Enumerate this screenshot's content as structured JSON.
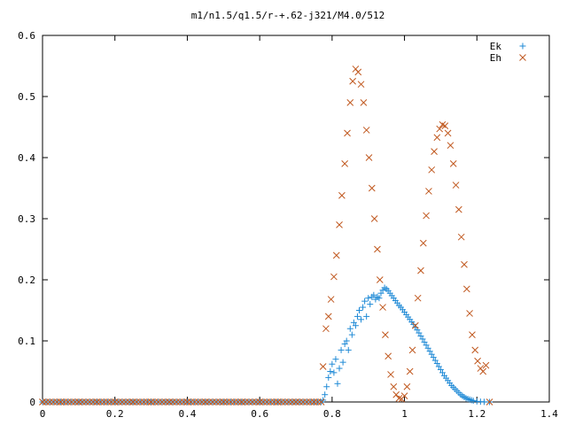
{
  "chart_data": {
    "type": "scatter",
    "title": "m1/n1.5/q1.5/r-+.62-j321/M4.0/512",
    "xlabel": "",
    "ylabel": "",
    "xlim": [
      0,
      1.4
    ],
    "ylim": [
      0,
      0.6
    ],
    "x_ticks": [
      "0",
      "0.2",
      "0.4",
      "0.6",
      "0.8",
      "1",
      "1.2",
      "1.4"
    ],
    "y_ticks": [
      "0",
      "0.1",
      "0.2",
      "0.3",
      "0.4",
      "0.5",
      "0.6"
    ],
    "grid": false,
    "legend_position": "top-right",
    "series": [
      {
        "name": "Ek",
        "marker": "plus",
        "color": "#1f8ad6",
        "points": [
          [
            0.0,
            0.0
          ],
          [
            0.05,
            0.0
          ],
          [
            0.1,
            0.0
          ],
          [
            0.15,
            0.0
          ],
          [
            0.2,
            0.0
          ],
          [
            0.25,
            0.0
          ],
          [
            0.3,
            0.0
          ],
          [
            0.35,
            0.0
          ],
          [
            0.4,
            0.0
          ],
          [
            0.45,
            0.0
          ],
          [
            0.5,
            0.0
          ],
          [
            0.55,
            0.0
          ],
          [
            0.6,
            0.0
          ],
          [
            0.65,
            0.0
          ],
          [
            0.7,
            0.0
          ],
          [
            0.75,
            0.0
          ],
          [
            0.77,
            0.0
          ],
          [
            0.775,
            0.003
          ],
          [
            0.78,
            0.012
          ],
          [
            0.785,
            0.025
          ],
          [
            0.79,
            0.04
          ],
          [
            0.795,
            0.05
          ],
          [
            0.8,
            0.062
          ],
          [
            0.805,
            0.048
          ],
          [
            0.81,
            0.07
          ],
          [
            0.815,
            0.03
          ],
          [
            0.82,
            0.055
          ],
          [
            0.825,
            0.085
          ],
          [
            0.83,
            0.065
          ],
          [
            0.835,
            0.095
          ],
          [
            0.84,
            0.1
          ],
          [
            0.845,
            0.085
          ],
          [
            0.85,
            0.12
          ],
          [
            0.855,
            0.11
          ],
          [
            0.86,
            0.13
          ],
          [
            0.865,
            0.125
          ],
          [
            0.87,
            0.14
          ],
          [
            0.875,
            0.15
          ],
          [
            0.88,
            0.135
          ],
          [
            0.885,
            0.155
          ],
          [
            0.89,
            0.165
          ],
          [
            0.895,
            0.14
          ],
          [
            0.9,
            0.17
          ],
          [
            0.905,
            0.16
          ],
          [
            0.91,
            0.172
          ],
          [
            0.915,
            0.175
          ],
          [
            0.92,
            0.168
          ],
          [
            0.925,
            0.172
          ],
          [
            0.93,
            0.17
          ],
          [
            0.935,
            0.178
          ],
          [
            0.94,
            0.183
          ],
          [
            0.945,
            0.187
          ],
          [
            0.95,
            0.185
          ],
          [
            0.955,
            0.182
          ],
          [
            0.96,
            0.178
          ],
          [
            0.965,
            0.174
          ],
          [
            0.97,
            0.17
          ],
          [
            0.975,
            0.166
          ],
          [
            0.98,
            0.162
          ],
          [
            0.985,
            0.158
          ],
          [
            0.99,
            0.155
          ],
          [
            0.995,
            0.151
          ],
          [
            1.0,
            0.147
          ],
          [
            1.005,
            0.143
          ],
          [
            1.01,
            0.139
          ],
          [
            1.015,
            0.135
          ],
          [
            1.02,
            0.131
          ],
          [
            1.025,
            0.127
          ],
          [
            1.03,
            0.122
          ],
          [
            1.035,
            0.118
          ],
          [
            1.04,
            0.113
          ],
          [
            1.045,
            0.108
          ],
          [
            1.05,
            0.103
          ],
          [
            1.055,
            0.098
          ],
          [
            1.06,
            0.093
          ],
          [
            1.065,
            0.088
          ],
          [
            1.07,
            0.083
          ],
          [
            1.075,
            0.078
          ],
          [
            1.08,
            0.073
          ],
          [
            1.085,
            0.068
          ],
          [
            1.09,
            0.063
          ],
          [
            1.095,
            0.058
          ],
          [
            1.1,
            0.053
          ],
          [
            1.105,
            0.048
          ],
          [
            1.11,
            0.043
          ],
          [
            1.115,
            0.039
          ],
          [
            1.12,
            0.035
          ],
          [
            1.125,
            0.031
          ],
          [
            1.13,
            0.027
          ],
          [
            1.135,
            0.024
          ],
          [
            1.14,
            0.021
          ],
          [
            1.145,
            0.018
          ],
          [
            1.15,
            0.015
          ],
          [
            1.155,
            0.012
          ],
          [
            1.16,
            0.01
          ],
          [
            1.165,
            0.008
          ],
          [
            1.17,
            0.006
          ],
          [
            1.175,
            0.005
          ],
          [
            1.18,
            0.004
          ],
          [
            1.185,
            0.003
          ],
          [
            1.19,
            0.002
          ],
          [
            1.2,
            0.001
          ],
          [
            1.21,
            0.0005
          ],
          [
            1.22,
            0.0002
          ],
          [
            1.235,
            0.0
          ]
        ]
      },
      {
        "name": "Eh",
        "marker": "cross",
        "color": "#c0581f",
        "points": [
          [
            0.0,
            0.0
          ],
          [
            0.05,
            0.0
          ],
          [
            0.1,
            0.0
          ],
          [
            0.15,
            0.0
          ],
          [
            0.2,
            0.0
          ],
          [
            0.25,
            0.0
          ],
          [
            0.3,
            0.0
          ],
          [
            0.35,
            0.0
          ],
          [
            0.4,
            0.0
          ],
          [
            0.45,
            0.0
          ],
          [
            0.5,
            0.0
          ],
          [
            0.55,
            0.0
          ],
          [
            0.6,
            0.0
          ],
          [
            0.65,
            0.0
          ],
          [
            0.7,
            0.0
          ],
          [
            0.75,
            0.0
          ],
          [
            0.77,
            0.0
          ],
          [
            0.775,
            0.058
          ],
          [
            0.783,
            0.12
          ],
          [
            0.79,
            0.14
          ],
          [
            0.797,
            0.168
          ],
          [
            0.805,
            0.205
          ],
          [
            0.812,
            0.24
          ],
          [
            0.82,
            0.29
          ],
          [
            0.827,
            0.338
          ],
          [
            0.835,
            0.39
          ],
          [
            0.842,
            0.44
          ],
          [
            0.85,
            0.49
          ],
          [
            0.857,
            0.525
          ],
          [
            0.865,
            0.545
          ],
          [
            0.872,
            0.54
          ],
          [
            0.88,
            0.52
          ],
          [
            0.887,
            0.49
          ],
          [
            0.895,
            0.445
          ],
          [
            0.902,
            0.4
          ],
          [
            0.91,
            0.35
          ],
          [
            0.917,
            0.3
          ],
          [
            0.925,
            0.25
          ],
          [
            0.932,
            0.2
          ],
          [
            0.94,
            0.155
          ],
          [
            0.947,
            0.11
          ],
          [
            0.955,
            0.075
          ],
          [
            0.962,
            0.045
          ],
          [
            0.97,
            0.025
          ],
          [
            0.977,
            0.012
          ],
          [
            0.985,
            0.006
          ],
          [
            0.992,
            0.005
          ],
          [
            1.0,
            0.01
          ],
          [
            1.007,
            0.025
          ],
          [
            1.015,
            0.05
          ],
          [
            1.022,
            0.085
          ],
          [
            1.03,
            0.125
          ],
          [
            1.037,
            0.17
          ],
          [
            1.045,
            0.215
          ],
          [
            1.052,
            0.26
          ],
          [
            1.06,
            0.305
          ],
          [
            1.067,
            0.345
          ],
          [
            1.075,
            0.38
          ],
          [
            1.082,
            0.41
          ],
          [
            1.09,
            0.433
          ],
          [
            1.097,
            0.447
          ],
          [
            1.105,
            0.454
          ],
          [
            1.112,
            0.452
          ],
          [
            1.12,
            0.44
          ],
          [
            1.127,
            0.42
          ],
          [
            1.135,
            0.39
          ],
          [
            1.142,
            0.355
          ],
          [
            1.15,
            0.315
          ],
          [
            1.157,
            0.27
          ],
          [
            1.165,
            0.225
          ],
          [
            1.172,
            0.185
          ],
          [
            1.18,
            0.145
          ],
          [
            1.187,
            0.11
          ],
          [
            1.195,
            0.085
          ],
          [
            1.202,
            0.067
          ],
          [
            1.21,
            0.055
          ],
          [
            1.217,
            0.05
          ],
          [
            1.225,
            0.06
          ],
          [
            1.235,
            0.0
          ]
        ]
      }
    ]
  }
}
